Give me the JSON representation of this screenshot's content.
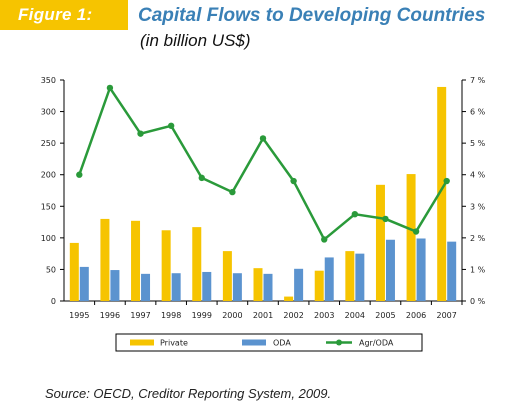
{
  "header": {
    "figure_label": "Figure 1:",
    "title": "Capital Flows to Developing Countries",
    "subtitle": "(in billion US$)"
  },
  "source": "Source: OECD, Creditor Reporting System, 2009.",
  "colors": {
    "badge": "#f6c400",
    "title": "#3a80b6",
    "private": "#f6c400",
    "oda": "#5b93cf",
    "agr_oda": "#2a9a3a"
  },
  "chart_data": {
    "type": "bar",
    "categories": [
      "1995",
      "1996",
      "1997",
      "1998",
      "1999",
      "2000",
      "2001",
      "2002",
      "2003",
      "2004",
      "2005",
      "2006",
      "2007"
    ],
    "series": [
      {
        "name": "Private",
        "type": "bar",
        "axis": "left",
        "values": [
          92,
          130,
          127,
          112,
          117,
          79,
          52,
          7,
          48,
          79,
          184,
          201,
          339
        ]
      },
      {
        "name": "ODA",
        "type": "bar",
        "axis": "left",
        "values": [
          54,
          49,
          43,
          44,
          46,
          44,
          43,
          51,
          69,
          75,
          97,
          99,
          94
        ]
      },
      {
        "name": "Agr/ODA",
        "type": "line",
        "axis": "right",
        "values": [
          4.0,
          6.75,
          5.3,
          5.55,
          3.9,
          3.45,
          5.15,
          3.8,
          1.95,
          2.75,
          2.6,
          2.2,
          3.8
        ]
      }
    ],
    "ylim": [
      0,
      350
    ],
    "yticks": [
      0,
      50,
      100,
      150,
      200,
      250,
      300,
      350
    ],
    "y2lim": [
      0,
      7
    ],
    "y2ticks": [
      "0 %",
      "1 %",
      "2 %",
      "3 %",
      "4 %",
      "5 %",
      "6 %",
      "7 %"
    ],
    "legend_position": "bottom",
    "grid": false
  }
}
